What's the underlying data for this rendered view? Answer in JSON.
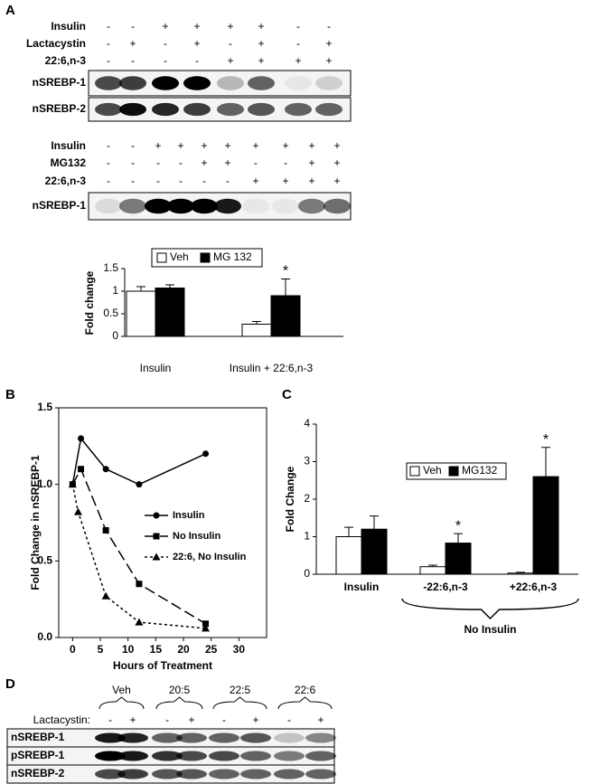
{
  "panel_labels": [
    "A",
    "B",
    "C",
    "D"
  ],
  "blot_a1": {
    "rows": [
      {
        "label": "Insulin",
        "signs": [
          "-",
          "-",
          "+",
          "+",
          "+",
          "+",
          "-",
          "-"
        ]
      },
      {
        "label": "Lactacystin",
        "signs": [
          "-",
          "+",
          "-",
          "+",
          "-",
          "+",
          "-",
          "+"
        ]
      },
      {
        "label": "22:6,n-3",
        "signs": [
          "-",
          "-",
          "-",
          "-",
          "+",
          "+",
          "+",
          "+"
        ]
      }
    ],
    "bands": [
      "nSREBP-1",
      "nSREBP-2"
    ]
  },
  "blot_a2": {
    "rows": [
      {
        "label": "Insulin",
        "signs": [
          "-",
          "-",
          "+",
          "+",
          "+",
          "+",
          "+",
          "+",
          "+",
          "+"
        ]
      },
      {
        "label": "MG132",
        "signs": [
          "-",
          "-",
          "-",
          "-",
          "+",
          "+",
          "-",
          "-",
          "+",
          "+"
        ]
      },
      {
        "label": "22:6,n-3",
        "signs": [
          "-",
          "-",
          "-",
          "-",
          "-",
          "-",
          "+",
          "+",
          "+",
          "+"
        ]
      }
    ],
    "bands": [
      "nSREBP-1"
    ]
  },
  "blot_d": {
    "groups": [
      "Veh",
      "20:5",
      "22:5",
      "22:6"
    ],
    "treatment": {
      "label": "Lactacystin:",
      "signs": [
        "-",
        "+",
        "-",
        "+",
        "-",
        "+",
        "-",
        "+"
      ]
    },
    "bands": [
      "nSREBP-1",
      "pSREBP-1",
      "nSREBP-2"
    ]
  },
  "chart_data": [
    {
      "type": "bar",
      "categories": [
        "Insulin",
        "Insulin + 22:6,n-3"
      ],
      "y_label": "Fold change",
      "ylim": [
        0,
        1.5
      ],
      "yticks": [
        0,
        0.5,
        1,
        1.5
      ],
      "series": [
        {
          "name": "Veh",
          "color": "#ffffff",
          "values": [
            1.0,
            0.27
          ],
          "errors": [
            0.1,
            0.06
          ],
          "annotations": [
            null,
            null
          ]
        },
        {
          "name": "MG 132",
          "color": "#000000",
          "values": [
            1.07,
            0.9
          ],
          "errors": [
            0.07,
            0.37
          ],
          "annotations": [
            null,
            "*"
          ]
        }
      ]
    },
    {
      "type": "line",
      "x_label": "Hours of Treatment",
      "y_label": "Fold Change in nSREBP-1",
      "xlim": [
        -2.5,
        35
      ],
      "xticks": [
        0,
        5,
        10,
        15,
        20,
        25,
        30
      ],
      "ylim": [
        0,
        1.5
      ],
      "yticks": [
        {
          "value": 0,
          "label": "0.0"
        },
        0.5,
        {
          "value": 1,
          "label": "1.0"
        },
        1.5
      ],
      "series": [
        {
          "name": "Insulin",
          "color": "#000000",
          "marker": "circle",
          "dash": "solid",
          "x": [
            0,
            1.5,
            6,
            12,
            24
          ],
          "values": [
            1.0,
            1.3,
            1.1,
            1.0,
            1.2
          ]
        },
        {
          "name": "No Insulin",
          "color": "#000000",
          "marker": "square",
          "dash": "long-dash",
          "x": [
            0,
            1.5,
            6,
            12,
            24
          ],
          "values": [
            1.0,
            1.1,
            0.7,
            0.35,
            0.09
          ]
        },
        {
          "name": "22:6, No Insulin",
          "color": "#000000",
          "marker": "triangle",
          "dash": "dotted",
          "x": [
            0,
            1,
            6,
            12,
            24
          ],
          "values": [
            1.0,
            0.82,
            0.27,
            0.1,
            0.06
          ]
        }
      ]
    },
    {
      "type": "bar",
      "categories": [
        "Insulin",
        "-22:6,n-3",
        "+22:6,n-3"
      ],
      "y_label": "Fold Change",
      "brace_label": "No Insulin",
      "ylim": [
        0,
        4
      ],
      "yticks": [
        0,
        1,
        2,
        3,
        4
      ],
      "series": [
        {
          "name": "Veh",
          "color": "#ffffff",
          "values": [
            1.0,
            0.2,
            0.03
          ],
          "errors": [
            0.25,
            0.04,
            0.02
          ],
          "annotations": [
            null,
            null,
            null
          ]
        },
        {
          "name": "MG132",
          "color": "#000000",
          "values": [
            1.2,
            0.83,
            2.6
          ],
          "errors": [
            0.35,
            0.25,
            0.78
          ],
          "annotations": [
            null,
            "*",
            "*"
          ]
        }
      ]
    }
  ]
}
